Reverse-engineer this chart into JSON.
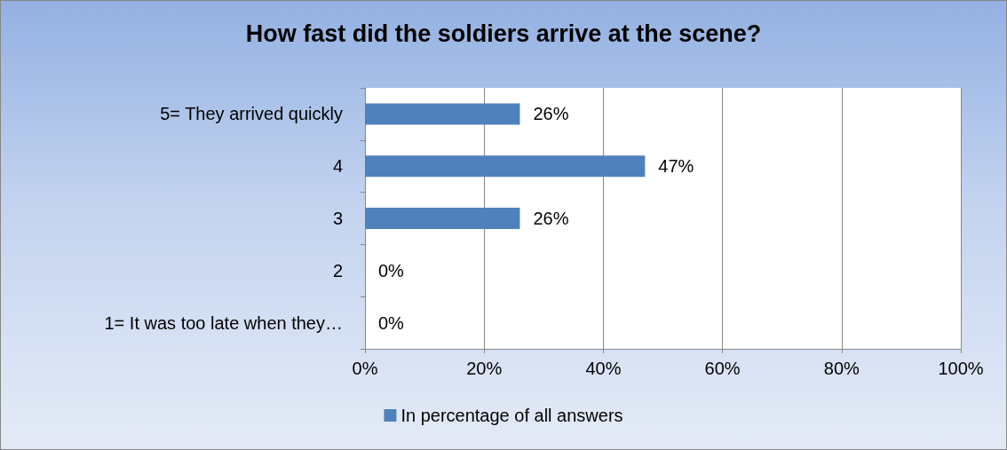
{
  "chart_data": {
    "type": "bar",
    "orientation": "horizontal",
    "title": "How fast did the soldiers arrive at the scene?",
    "categories": [
      "5= They arrived quickly",
      "4",
      "3",
      "2",
      "1= It was too late when they…"
    ],
    "series": [
      {
        "name": "In percentage of all answers",
        "color": "#4f81bd",
        "values": [
          26,
          47,
          26,
          0,
          0
        ],
        "value_labels": [
          "26%",
          "47%",
          "26%",
          "0%",
          "0%"
        ]
      }
    ],
    "xlim": [
      0,
      100
    ],
    "xticks": [
      {
        "value": 0,
        "label": "0%"
      },
      {
        "value": 20,
        "label": "20%"
      },
      {
        "value": 40,
        "label": "40%"
      },
      {
        "value": 60,
        "label": "60%"
      },
      {
        "value": 80,
        "label": "80%"
      },
      {
        "value": 100,
        "label": "100%"
      }
    ],
    "grid": "x",
    "legend": "bottom"
  }
}
